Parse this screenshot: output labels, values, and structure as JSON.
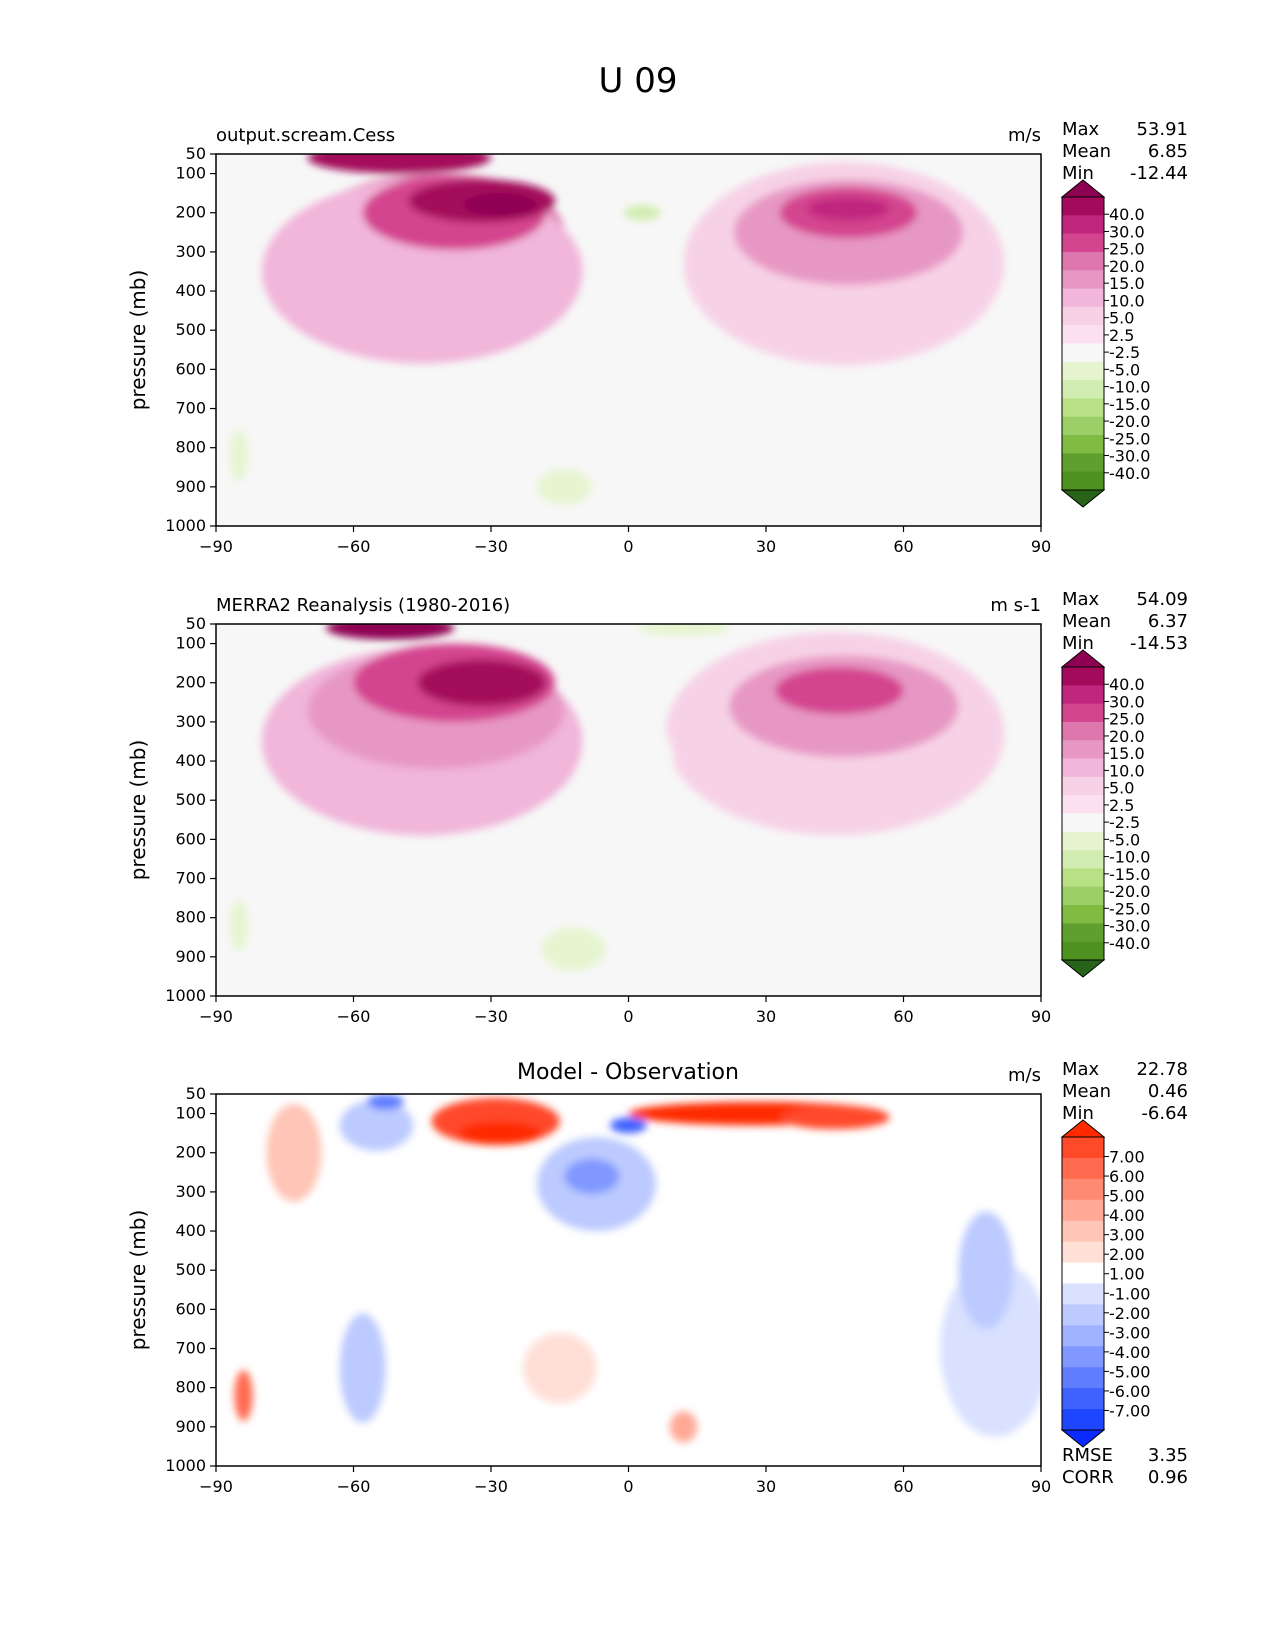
{
  "figure_title": "U 09",
  "chart_data": [
    {
      "type": "heatmap",
      "id": "model",
      "title": "",
      "left_label": "output.scream.Cess",
      "units": "m/s",
      "ylabel": "pressure (mb)",
      "xlabel": "",
      "x_ticks": [
        "−90",
        "−60",
        "−30",
        "0",
        "30",
        "60",
        "90"
      ],
      "x_values": [
        -90,
        -60,
        -30,
        0,
        30,
        60,
        90
      ],
      "xlim": [
        -90,
        90
      ],
      "y_ticks": [
        "50",
        "100",
        "200",
        "300",
        "400",
        "500",
        "600",
        "700",
        "800",
        "900",
        "1000"
      ],
      "y_values": [
        50,
        100,
        200,
        300,
        400,
        500,
        600,
        700,
        800,
        900,
        1000
      ],
      "ylim": [
        50,
        1000
      ],
      "stats": [
        {
          "label": "Max",
          "value": "53.91"
        },
        {
          "label": "Mean",
          "value": "6.85"
        },
        {
          "label": "Min",
          "value": "-12.44"
        }
      ],
      "colorbar_labels": [
        "40.0",
        "30.0",
        "25.0",
        "20.0",
        "15.0",
        "10.0",
        "5.0",
        "2.5",
        "-2.5",
        "-5.0",
        "-10.0",
        "-15.0",
        "-20.0",
        "-25.0",
        "-30.0",
        "-40.0"
      ],
      "colorbar_colors": [
        "#8e0152",
        "#a40a5c",
        "#c0267e",
        "#d4458f",
        "#de77ae",
        "#e797c4",
        "#f1b6da",
        "#f7d2e6",
        "#fde0ef",
        "#f7f7f7",
        "#e6f5d0",
        "#d2edb2",
        "#b8e186",
        "#9ccf68",
        "#7fbc41",
        "#5f9f30",
        "#4d9221",
        "#276419"
      ],
      "blobs": [
        {
          "lat": -42,
          "p": 250,
          "rx": 28,
          "ry": 300,
          "value": 15
        },
        {
          "lat": -45,
          "p": 350,
          "rx": 35,
          "ry": 470,
          "value": 5
        },
        {
          "lat": -38,
          "p": 200,
          "rx": 20,
          "ry": 190,
          "value": 22
        },
        {
          "lat": -32,
          "p": 170,
          "rx": 16,
          "ry": 110,
          "value": 30
        },
        {
          "lat": -28,
          "p": 180,
          "rx": 8,
          "ry": 60,
          "value": 42
        },
        {
          "lat": -50,
          "p": 60,
          "rx": 20,
          "ry": 80,
          "value": 35
        },
        {
          "lat": 47,
          "p": 330,
          "rx": 35,
          "ry": 520,
          "value": 4
        },
        {
          "lat": 48,
          "p": 250,
          "rx": 25,
          "ry": 270,
          "value": 12
        },
        {
          "lat": 48,
          "p": 200,
          "rx": 15,
          "ry": 130,
          "value": 20
        },
        {
          "lat": 48,
          "p": 190,
          "rx": 9,
          "ry": 60,
          "value": 28
        },
        {
          "lat": 2,
          "p": 420,
          "rx": 8,
          "ry": 300,
          "value": -4
        },
        {
          "lat": 3,
          "p": 200,
          "rx": 4,
          "ry": 40,
          "value": -12
        },
        {
          "lat": -14,
          "p": 900,
          "rx": 6,
          "ry": 90,
          "value": -6
        },
        {
          "lat": -85,
          "p": 820,
          "rx": 2,
          "ry": 130,
          "value": -8
        }
      ]
    },
    {
      "type": "heatmap",
      "id": "obs",
      "title": "",
      "left_label": "MERRA2 Reanalysis (1980-2016)",
      "units": "m s-1",
      "ylabel": "pressure (mb)",
      "xlabel": "",
      "x_ticks": [
        "−90",
        "−60",
        "−30",
        "0",
        "30",
        "60",
        "90"
      ],
      "x_values": [
        -90,
        -60,
        -30,
        0,
        30,
        60,
        90
      ],
      "xlim": [
        -90,
        90
      ],
      "y_ticks": [
        "50",
        "100",
        "200",
        "300",
        "400",
        "500",
        "600",
        "700",
        "800",
        "900",
        "1000"
      ],
      "y_values": [
        50,
        100,
        200,
        300,
        400,
        500,
        600,
        700,
        800,
        900,
        1000
      ],
      "ylim": [
        50,
        1000
      ],
      "stats": [
        {
          "label": "Max",
          "value": "54.09"
        },
        {
          "label": "Mean",
          "value": "6.37"
        },
        {
          "label": "Min",
          "value": "-14.53"
        }
      ],
      "colorbar_labels": [
        "40.0",
        "30.0",
        "25.0",
        "20.0",
        "15.0",
        "10.0",
        "5.0",
        "2.5",
        "-2.5",
        "-5.0",
        "-10.0",
        "-15.0",
        "-20.0",
        "-25.0",
        "-30.0",
        "-40.0"
      ],
      "colorbar_colors": [
        "#8e0152",
        "#a40a5c",
        "#c0267e",
        "#d4458f",
        "#de77ae",
        "#e797c4",
        "#f1b6da",
        "#f7d2e6",
        "#fde0ef",
        "#f7f7f7",
        "#e6f5d0",
        "#d2edb2",
        "#b8e186",
        "#9ccf68",
        "#7fbc41",
        "#5f9f30",
        "#4d9221",
        "#276419"
      ],
      "blobs": [
        {
          "lat": -45,
          "p": 350,
          "rx": 35,
          "ry": 480,
          "value": 5
        },
        {
          "lat": -42,
          "p": 270,
          "rx": 28,
          "ry": 300,
          "value": 14
        },
        {
          "lat": -38,
          "p": 200,
          "rx": 22,
          "ry": 200,
          "value": 22
        },
        {
          "lat": -32,
          "p": 200,
          "rx": 14,
          "ry": 120,
          "value": 30
        },
        {
          "lat": -52,
          "p": 60,
          "rx": 14,
          "ry": 60,
          "value": 42
        },
        {
          "lat": 45,
          "p": 330,
          "rx": 37,
          "ry": 520,
          "value": 4
        },
        {
          "lat": 47,
          "p": 260,
          "rx": 25,
          "ry": 260,
          "value": 12
        },
        {
          "lat": 46,
          "p": 220,
          "rx": 14,
          "ry": 120,
          "value": 20
        },
        {
          "lat": 0,
          "p": 420,
          "rx": 10,
          "ry": 320,
          "value": -4
        },
        {
          "lat": 12,
          "p": 60,
          "rx": 10,
          "ry": 40,
          "value": -10
        },
        {
          "lat": -12,
          "p": 880,
          "rx": 7,
          "ry": 110,
          "value": -7
        },
        {
          "lat": -85,
          "p": 820,
          "rx": 2,
          "ry": 130,
          "value": -8
        }
      ]
    },
    {
      "type": "heatmap",
      "id": "diff",
      "title": "Model - Observation",
      "left_label": "",
      "units": "m/s",
      "ylabel": "pressure (mb)",
      "xlabel": "",
      "x_ticks": [
        "−90",
        "−60",
        "−30",
        "0",
        "30",
        "60",
        "90"
      ],
      "x_values": [
        -90,
        -60,
        -30,
        0,
        30,
        60,
        90
      ],
      "xlim": [
        -90,
        90
      ],
      "y_ticks": [
        "50",
        "100",
        "200",
        "300",
        "400",
        "500",
        "600",
        "700",
        "800",
        "900",
        "1000"
      ],
      "y_values": [
        50,
        100,
        200,
        300,
        400,
        500,
        600,
        700,
        800,
        900,
        1000
      ],
      "ylim": [
        50,
        1000
      ],
      "stats": [
        {
          "label": "Max",
          "value": "22.78"
        },
        {
          "label": "Mean",
          "value": "0.46"
        },
        {
          "label": "Min",
          "value": "-6.64"
        }
      ],
      "extra_stats": [
        {
          "label": "RMSE",
          "value": "3.35"
        },
        {
          "label": "CORR",
          "value": "0.96"
        }
      ],
      "colorbar_labels": [
        "7.00",
        "6.00",
        "5.00",
        "4.00",
        "3.00",
        "2.00",
        "1.00",
        "-1.00",
        "-2.00",
        "-3.00",
        "-4.00",
        "-5.00",
        "-6.00",
        "-7.00"
      ],
      "colorbar_colors": [
        "#ff2a00",
        "#ff4a2a",
        "#ff6a4f",
        "#ff8a72",
        "#ffa996",
        "#ffc5b6",
        "#ffdfd6",
        "#ffffff",
        "#d9e1ff",
        "#bccaff",
        "#9fb1ff",
        "#8098ff",
        "#5f7eff",
        "#3f62ff",
        "#1f46ff",
        "#0a2aff"
      ],
      "blobs": [
        {
          "lat": -29,
          "p": 120,
          "rx": 14,
          "ry": 120,
          "value": 6
        },
        {
          "lat": -28,
          "p": 150,
          "rx": 9,
          "ry": 60,
          "value": 8
        },
        {
          "lat": 28,
          "p": 100,
          "rx": 28,
          "ry": 60,
          "value": 7
        },
        {
          "lat": 45,
          "p": 110,
          "rx": 12,
          "ry": 60,
          "value": 6
        },
        {
          "lat": -73,
          "p": 200,
          "rx": 6,
          "ry": 250,
          "value": 2
        },
        {
          "lat": -55,
          "p": 130,
          "rx": 8,
          "ry": 130,
          "value": -3
        },
        {
          "lat": -53,
          "p": 70,
          "rx": 4,
          "ry": 40,
          "value": -6
        },
        {
          "lat": -7,
          "p": 280,
          "rx": 13,
          "ry": 240,
          "value": -2.5
        },
        {
          "lat": -8,
          "p": 260,
          "rx": 6,
          "ry": 90,
          "value": -4.5
        },
        {
          "lat": 0,
          "p": 130,
          "rx": 4,
          "ry": 40,
          "value": -6.5
        },
        {
          "lat": 80,
          "p": 700,
          "rx": 12,
          "ry": 450,
          "value": -1.5
        },
        {
          "lat": 78,
          "p": 500,
          "rx": 6,
          "ry": 300,
          "value": -3
        },
        {
          "lat": -58,
          "p": 750,
          "rx": 5,
          "ry": 280,
          "value": -2.5
        },
        {
          "lat": -15,
          "p": 750,
          "rx": 8,
          "ry": 180,
          "value": 1.5
        },
        {
          "lat": 12,
          "p": 900,
          "rx": 3,
          "ry": 80,
          "value": 3
        },
        {
          "lat": -84,
          "p": 820,
          "rx": 2,
          "ry": 130,
          "value": 5
        }
      ]
    }
  ]
}
